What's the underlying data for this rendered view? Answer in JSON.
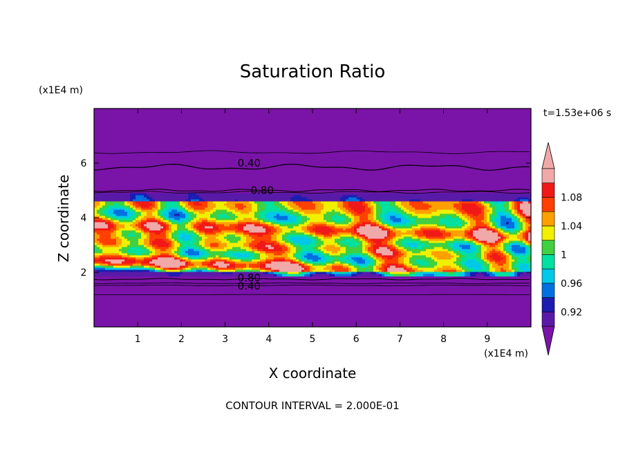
{
  "chart_data": {
    "type": "heatmap",
    "title": "Saturation Ratio",
    "time_label": "t=1.53e+06 s",
    "xlabel": "X coordinate",
    "ylabel": "Z coordinate",
    "x_unit": "(x1E4 m)",
    "y_unit": "(x1E4 m)",
    "footer": "CONTOUR INTERVAL = 2.000E-01",
    "xlim": [
      0,
      10
    ],
    "ylim": [
      0,
      8
    ],
    "x_ticks": [
      1,
      2,
      3,
      4,
      5,
      6,
      7,
      8,
      9
    ],
    "y_ticks": [
      2,
      4,
      6
    ],
    "colorbar": {
      "tick_labels": [
        "0.92",
        "0.96",
        "1",
        "1.04",
        "1.08"
      ],
      "tick_values": [
        0.92,
        0.96,
        1.0,
        1.04,
        1.08
      ],
      "levels": [
        0.9,
        0.92,
        0.94,
        0.96,
        0.98,
        1.0,
        1.02,
        1.04,
        1.06,
        1.08,
        1.1
      ],
      "colors": [
        "#5a1aa8",
        "#1c1cb0",
        "#0070e0",
        "#00c8e8",
        "#00e0a0",
        "#40d040",
        "#f0f000",
        "#ffa000",
        "#ff4000",
        "#f01818",
        "#f0a8a8"
      ],
      "under_color": "#7a13a8",
      "over_color": "#f0a8a8"
    },
    "background_color": "#7a13a8",
    "contour_labels": [
      {
        "text": "0.40",
        "x": 3.55,
        "z": 6.0
      },
      {
        "text": "0.80",
        "x": 3.85,
        "z": 5.0
      },
      {
        "text": "0.80",
        "x": 3.55,
        "z": 1.8
      },
      {
        "text": "0.40",
        "x": 3.55,
        "z": 1.5
      }
    ],
    "saturation_band": {
      "z_bottom": 1.9,
      "z_top": 4.9
    }
  }
}
